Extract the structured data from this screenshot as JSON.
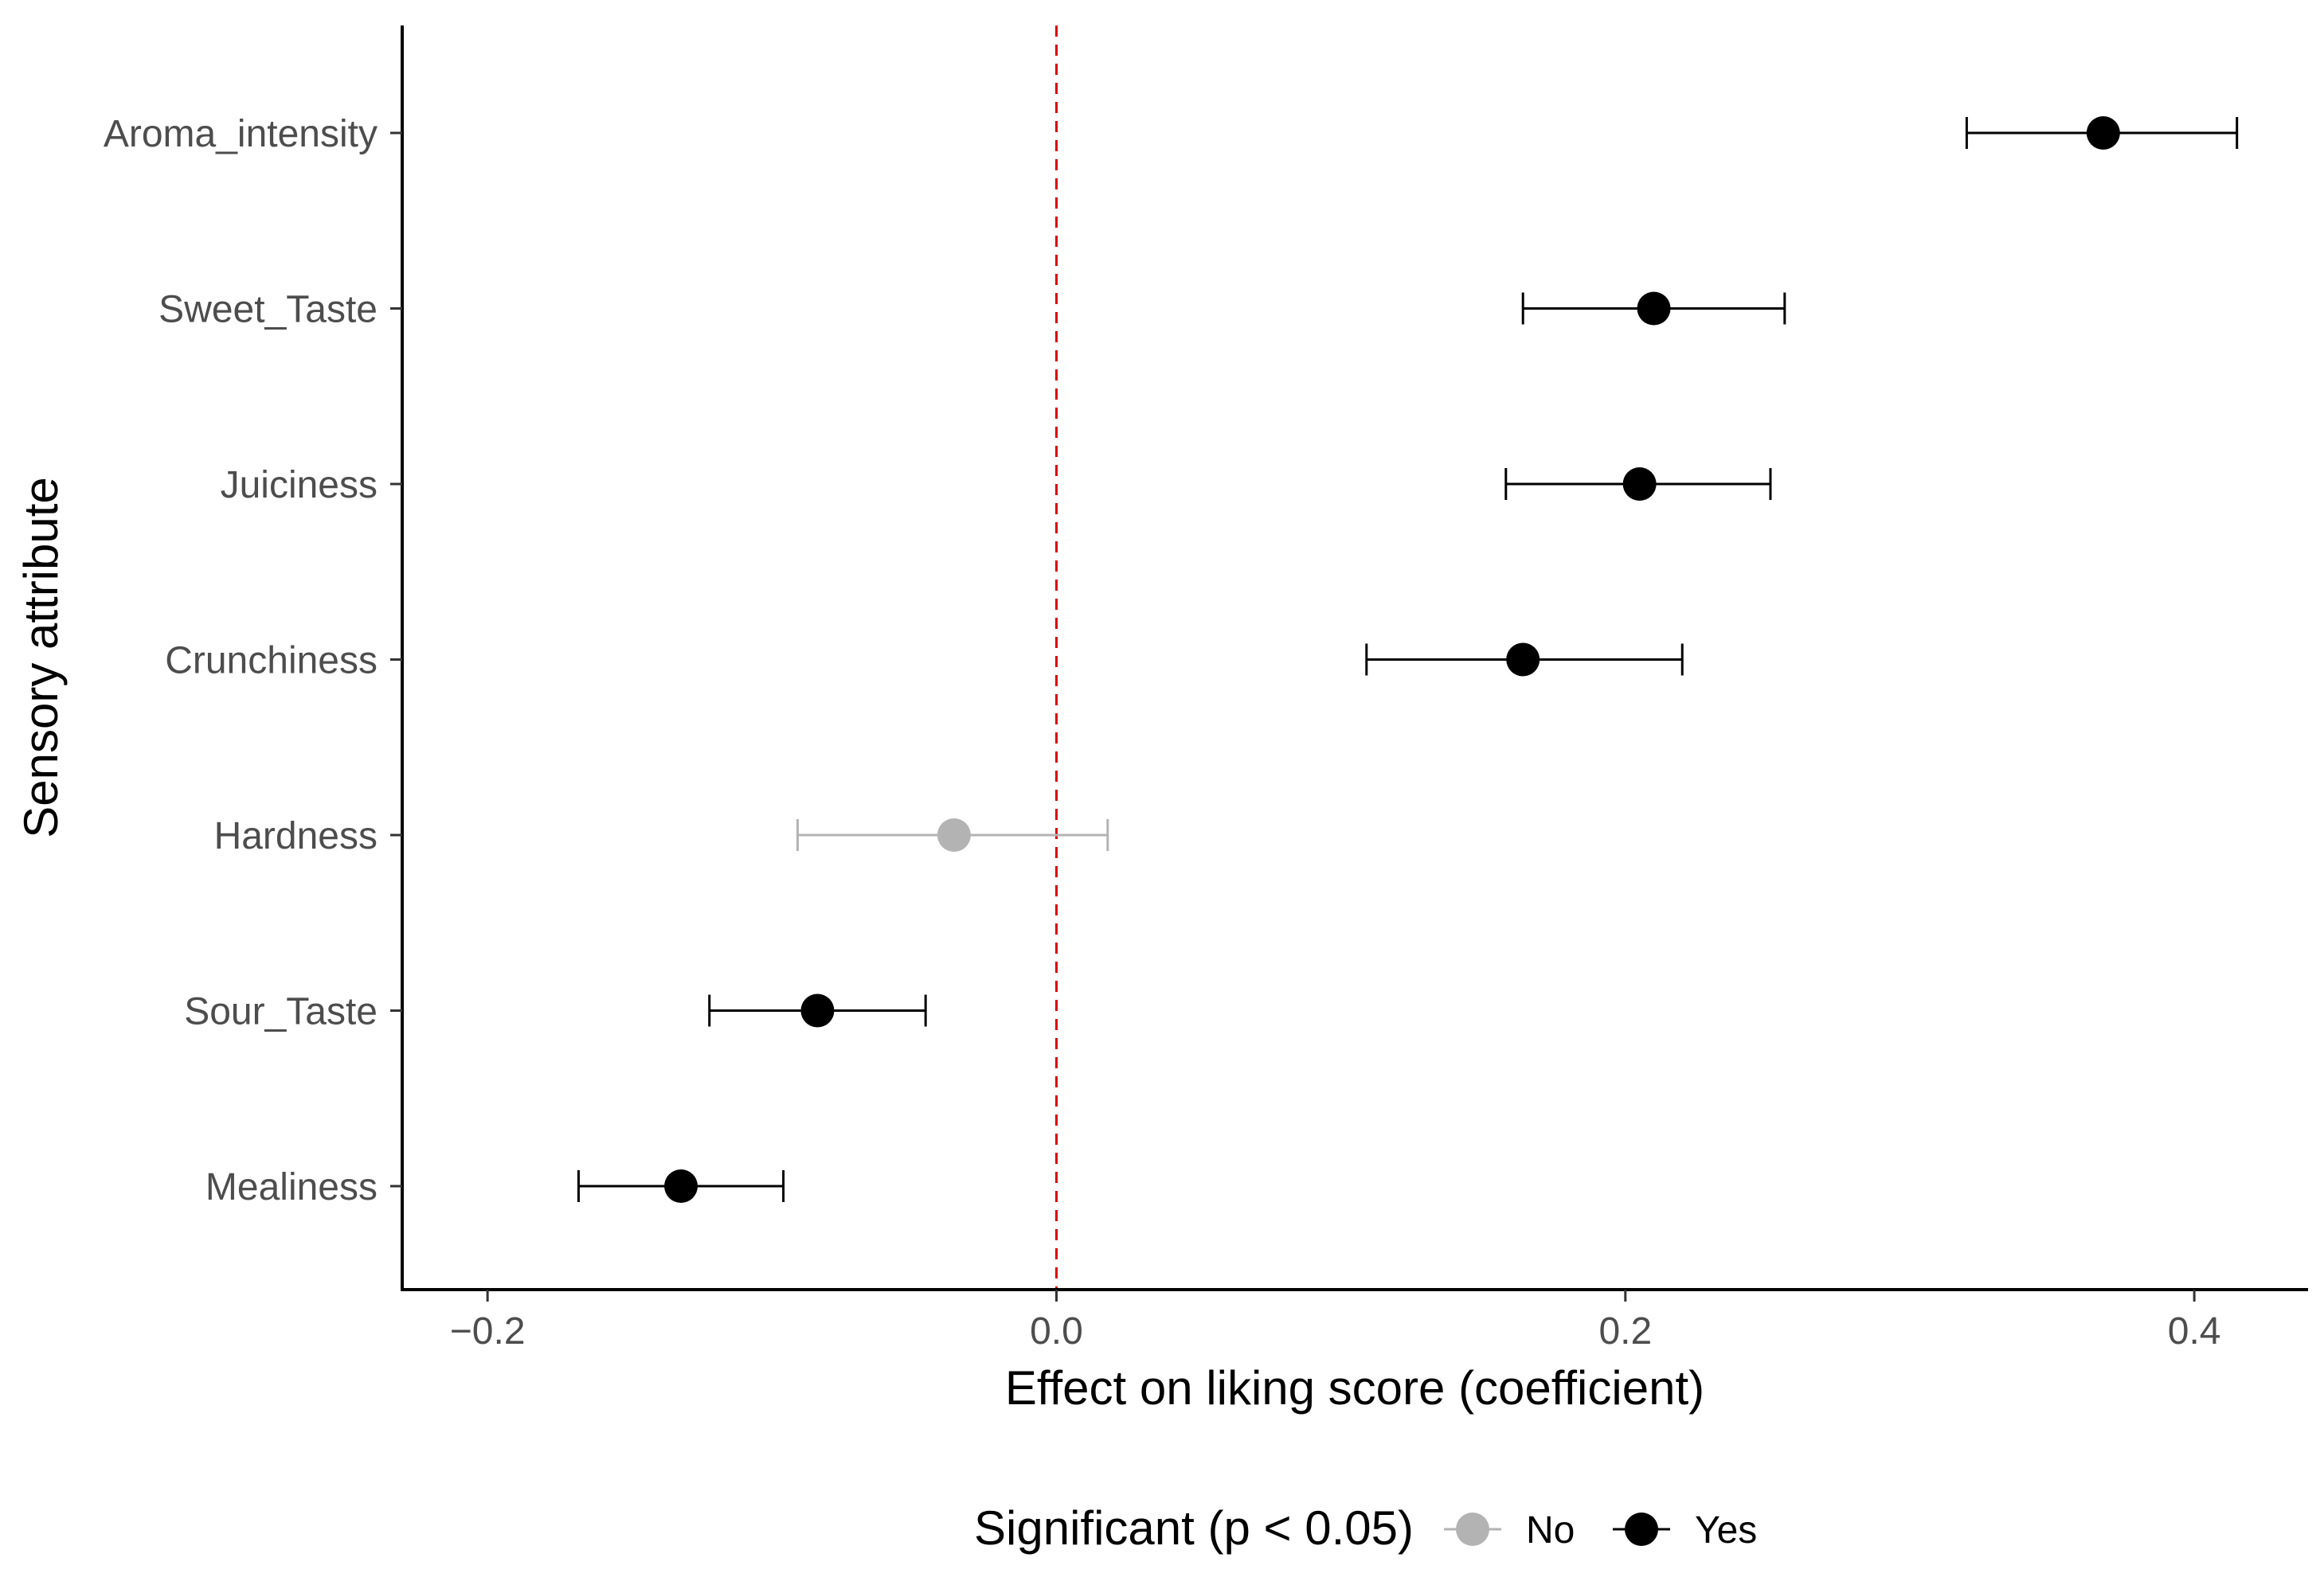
{
  "chart_data": {
    "type": "scatter",
    "subtype": "coefficient-plot-with-error-bars",
    "xlabel": "Effect on liking score (coefficient)",
    "ylabel": "Sensory attribute",
    "xlim": [
      -0.23,
      0.44
    ],
    "xticks": [
      -0.2,
      0.0,
      0.2,
      0.4
    ],
    "xtick_labels": [
      "−0.2",
      "0.0",
      "0.2",
      "0.4"
    ],
    "reference_line": {
      "x": 0,
      "style": "dashed",
      "color": "#dd0000"
    },
    "categories": [
      "Aroma_intensity",
      "Sweet_Taste",
      "Juiciness",
      "Crunchiness",
      "Hardness",
      "Sour_Taste",
      "Mealiness"
    ],
    "points": [
      {
        "attribute": "Aroma_intensity",
        "estimate": 0.368,
        "lower": 0.32,
        "upper": 0.415,
        "significant": "Yes"
      },
      {
        "attribute": "Sweet_Taste",
        "estimate": 0.21,
        "lower": 0.164,
        "upper": 0.256,
        "significant": "Yes"
      },
      {
        "attribute": "Juiciness",
        "estimate": 0.205,
        "lower": 0.158,
        "upper": 0.251,
        "significant": "Yes"
      },
      {
        "attribute": "Crunchiness",
        "estimate": 0.164,
        "lower": 0.109,
        "upper": 0.22,
        "significant": "Yes"
      },
      {
        "attribute": "Hardness",
        "estimate": -0.036,
        "lower": -0.091,
        "upper": 0.018,
        "significant": "No"
      },
      {
        "attribute": "Sour_Taste",
        "estimate": -0.084,
        "lower": -0.122,
        "upper": -0.046,
        "significant": "Yes"
      },
      {
        "attribute": "Mealiness",
        "estimate": -0.132,
        "lower": -0.168,
        "upper": -0.096,
        "significant": "Yes"
      }
    ],
    "legend": {
      "title": "Significant (p < 0.05)",
      "position": "bottom",
      "entries": [
        {
          "label": "No",
          "color": "#b3b3b3"
        },
        {
          "label": "Yes",
          "color": "#000000"
        }
      ]
    }
  }
}
